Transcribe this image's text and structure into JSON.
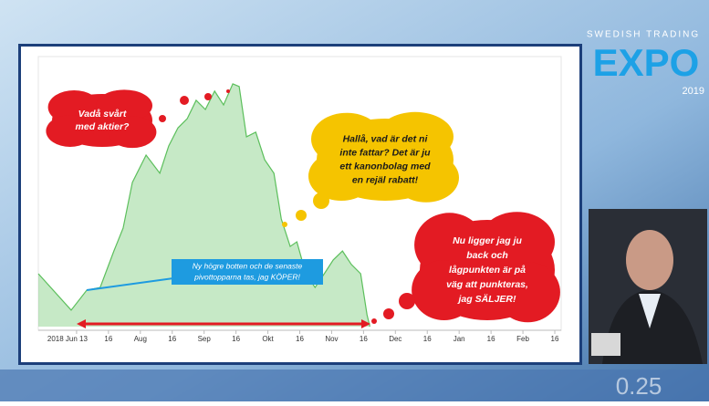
{
  "chart_data": {
    "type": "area",
    "x": [
      -1.2,
      -0.17,
      0.32,
      0.74,
      1.17,
      1.46,
      1.75,
      2.18,
      2.61,
      2.89,
      3.18,
      3.47,
      3.75,
      4.04,
      4.33,
      4.61,
      4.9,
      5.1,
      5.33,
      5.62,
      5.9,
      6.19,
      6.42,
      6.7,
      6.91,
      7.19,
      7.48,
      7.77,
      8.05,
      8.34,
      8.62,
      8.91,
      9.11,
      9.2
    ],
    "values": [
      19.6,
      6.1,
      13.5,
      14.5,
      28,
      36.5,
      53.4,
      63.5,
      56.8,
      66.9,
      73.6,
      77,
      83.8,
      80.4,
      87.2,
      82.1,
      89.9,
      88.9,
      70.3,
      72,
      61.8,
      56.8,
      39.9,
      29.7,
      31.4,
      19.6,
      14.5,
      19.6,
      24.7,
      28,
      23,
      19.6,
      4.4,
      0
    ],
    "color": "#5cbf5c",
    "xlim": [
      -1.2,
      15.2
    ],
    "ylim": [
      0,
      100
    ],
    "xticks": [
      {
        "value": 0,
        "label": "2018 Jun 13"
      },
      {
        "value": 1,
        "label": "16"
      },
      {
        "value": 2,
        "label": "Aug"
      },
      {
        "value": 3,
        "label": "16"
      },
      {
        "value": 4,
        "label": "Sep"
      },
      {
        "value": 5,
        "label": "16"
      },
      {
        "value": 6,
        "label": "Okt"
      },
      {
        "value": 7,
        "label": "16"
      },
      {
        "value": 8,
        "label": "Nov"
      },
      {
        "value": 9,
        "label": "16"
      },
      {
        "value": 10,
        "label": "Dec"
      },
      {
        "value": 11,
        "label": "16"
      },
      {
        "value": 12,
        "label": "Jan"
      },
      {
        "value": 13,
        "label": "16"
      },
      {
        "value": 14,
        "label": "Feb"
      },
      {
        "value": 15,
        "label": "16"
      }
    ],
    "grid": false
  },
  "annotations": [
    {
      "lines": [
        "Vadå svårt",
        "med aktier?"
      ]
    },
    {
      "lines": [
        "Hallå, vad är det ni",
        "inte fattar? Det är ju",
        "ett kanonbolag med",
        "en rejäl rabatt!"
      ]
    },
    {
      "lines": [
        "Nu ligger jag ju",
        "back och",
        "lågpunkten är på",
        "väg att punkteras,",
        "jag SÄLJER!"
      ]
    },
    {
      "lines": [
        "Ny högre botten och de senaste",
        "pivottopparna tas, jag KÖPER!"
      ]
    }
  ],
  "branding": {
    "top": "SWEDISH TRADING",
    "main": "EXPO",
    "year": "2019",
    "ticker": "0.25"
  }
}
